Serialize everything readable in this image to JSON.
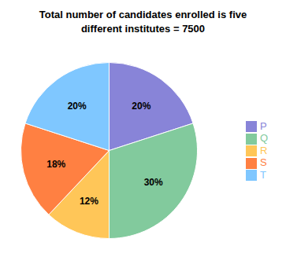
{
  "chart_data": {
    "type": "pie",
    "title": "Total number of candidates enrolled is five\ndifferent institutes = 7500",
    "categories": [
      "P",
      "Q",
      "R",
      "S",
      "T"
    ],
    "values": [
      20,
      30,
      12,
      18,
      20
    ],
    "value_labels": [
      "20%",
      "30%",
      "12%",
      "18%",
      "20%"
    ],
    "data_labels": true,
    "legend": "right"
  }
}
